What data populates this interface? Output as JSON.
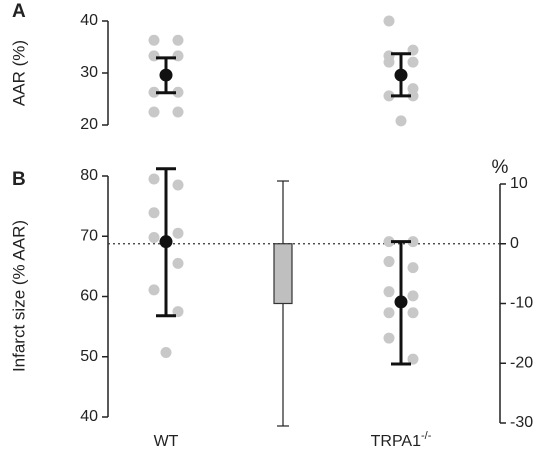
{
  "chart_data": [
    {
      "type": "scatter",
      "panel": "A",
      "ylabel": "AAR (%)",
      "ylim": [
        20,
        40
      ],
      "yticks": [
        20,
        30,
        40
      ],
      "categories": [
        "WT",
        "TRPA1"
      ],
      "point_color": "#c8c8c8",
      "mean_color": "#111111",
      "groups": [
        {
          "points": [
            36.3,
            36.3,
            33.3,
            33.3,
            26.3,
            26.3,
            22.5,
            22.5
          ],
          "mean": 29.6,
          "error_low": 26.2,
          "error_high": 32.9
        },
        {
          "points": [
            40,
            34.4,
            33.3,
            32.1,
            32.1,
            27,
            25.6,
            25.6,
            20.8
          ],
          "mean": 29.6,
          "error_low": 25.6,
          "error_high": 33.7
        }
      ]
    },
    {
      "type": "scatter",
      "panel": "B",
      "ylabel": "Infarct size (% AAR)",
      "y2label": "%",
      "ylim": [
        40,
        80
      ],
      "yticks": [
        40,
        50,
        60,
        70,
        80
      ],
      "y2lim": [
        -30,
        10
      ],
      "y2ticks": [
        -30,
        -20,
        -10,
        0,
        10
      ],
      "categories": [
        "WT",
        "TRPA1"
      ],
      "category_superscripts": [
        null,
        "-/-"
      ],
      "point_color": "#c8c8c8",
      "mean_color": "#111111",
      "groups": [
        {
          "points": [
            79.5,
            78.5,
            73.9,
            70.5,
            69.8,
            65.5,
            61.1,
            57.5,
            50.7
          ],
          "mean": 69.1,
          "error_low": 56.8,
          "error_high": 81.2
        },
        {
          "points": [
            69.1,
            69.1,
            65.8,
            64.8,
            60.8,
            60.1,
            57.3,
            57.3,
            53.1,
            49.6
          ],
          "mean": 59.1,
          "error_low": 48.8,
          "error_high": 69.1
        }
      ],
      "reference_line": {
        "value": 0,
        "axis": "y2"
      },
      "bar": {
        "value": -10,
        "error_low": -30.5,
        "error_high": 10.5,
        "axis": "y2",
        "color": "#bfbfbf"
      }
    }
  ]
}
